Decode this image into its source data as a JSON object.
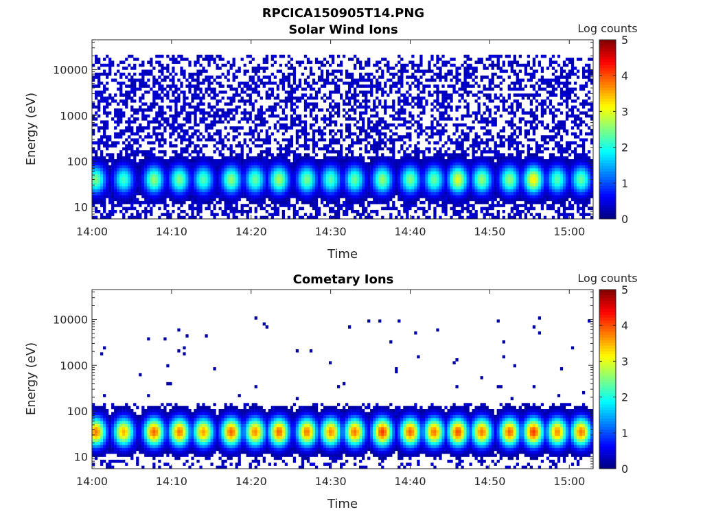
{
  "figure_title": "RPCICA150905T14.PNG",
  "chart_data": [
    {
      "type": "heatmap",
      "title": "Solar Wind Ions",
      "xlabel": "Time",
      "ylabel": "Energy (eV)",
      "x_ticks": [
        "14:00",
        "14:10",
        "14:20",
        "14:30",
        "14:40",
        "14:50",
        "15:00"
      ],
      "y_ticks": [
        "10",
        "100",
        "1000",
        "10000"
      ],
      "y_scale": "log",
      "xlim": [
        "14:00",
        "15:03"
      ],
      "ylim": [
        5.5,
        45000
      ],
      "colorbar": {
        "label": "Log counts",
        "ticks": [
          "0",
          "1",
          "2",
          "3",
          "4",
          "5"
        ],
        "range": [
          0,
          5
        ]
      },
      "bursts": {
        "times_min": [
          0.5,
          4,
          7.8,
          11,
          14,
          17.5,
          20.5,
          23.5,
          27,
          30,
          33,
          36.5,
          40,
          43,
          46,
          49,
          52.5,
          55.5,
          58.5,
          61.5
        ],
        "peak_energy_eV": 40,
        "peak_log_counts": [
          2.5,
          2.2,
          2.6,
          2.5,
          2.3,
          2.6,
          2.4,
          2.7,
          2.5,
          2.3,
          2.4,
          2.6,
          2.5,
          2.4,
          3.0,
          2.6,
          2.6,
          3.2,
          2.3,
          2.4
        ]
      },
      "background": {
        "energy_range_eV": [
          5.5,
          20000
        ],
        "typical_log_counts": 0.2,
        "fill_fraction": 0.5
      }
    },
    {
      "type": "heatmap",
      "title": "Cometary Ions",
      "xlabel": "Time",
      "ylabel": "Energy (eV)",
      "x_ticks": [
        "14:00",
        "14:10",
        "14:20",
        "14:30",
        "14:40",
        "14:50",
        "15:00"
      ],
      "y_ticks": [
        "10",
        "100",
        "1000",
        "10000"
      ],
      "y_scale": "log",
      "xlim": [
        "14:00",
        "15:03"
      ],
      "ylim": [
        5.5,
        45000
      ],
      "colorbar": {
        "label": "Log counts",
        "ticks": [
          "0",
          "1",
          "2",
          "3",
          "4",
          "5"
        ],
        "range": [
          0,
          5
        ]
      },
      "bursts": {
        "times_min": [
          0.5,
          4,
          7.8,
          11,
          14,
          17.5,
          20.5,
          23.5,
          27,
          30,
          33,
          36.5,
          40,
          43,
          46,
          49,
          52.5,
          55.5,
          58.5,
          61.5
        ],
        "peak_energy_eV": 35,
        "peak_log_counts": [
          3.8,
          3.5,
          3.9,
          3.8,
          3.6,
          3.9,
          3.7,
          3.9,
          3.8,
          3.7,
          3.8,
          4.1,
          3.9,
          3.8,
          4.0,
          3.8,
          3.9,
          4.1,
          3.7,
          3.8
        ]
      },
      "background": {
        "energy_range_eV": [
          5.5,
          150
        ],
        "typical_log_counts": 0.2,
        "fill_fraction": 0.25,
        "sparse_upto_eV": 12000
      }
    }
  ]
}
